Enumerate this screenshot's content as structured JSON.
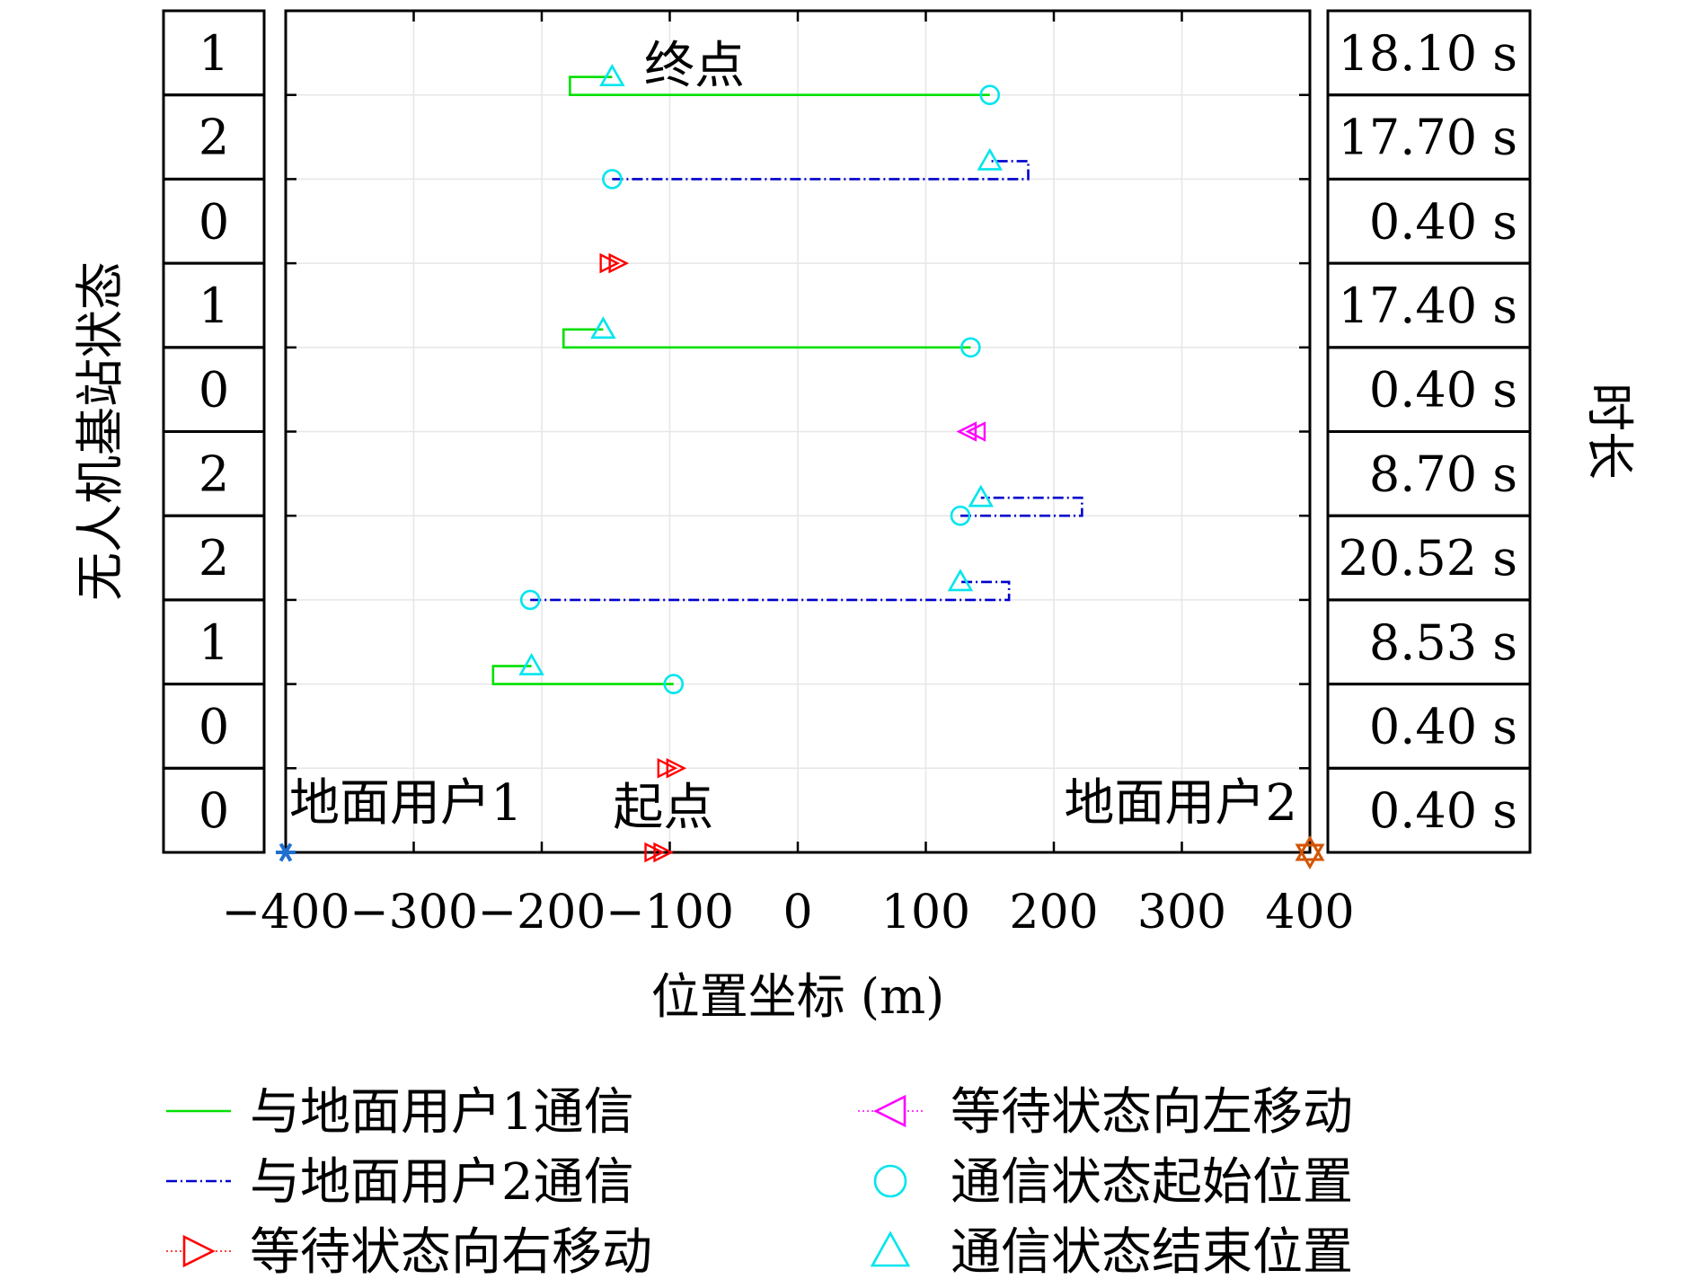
{
  "chart_data": {
    "type": "line",
    "xlabel": "位置坐标 (m)",
    "ylabel": "无人机基站状态",
    "right_label": "时长",
    "xlim": [
      -400,
      400
    ],
    "xticks": [
      -400,
      -300,
      -200,
      -100,
      0,
      100,
      200,
      300,
      400
    ],
    "xtick_labels": [
      "−400",
      "−300",
      "−200",
      "−100",
      "0",
      "100",
      "200",
      "300",
      "400"
    ],
    "grid": true,
    "legend_position": "bottom",
    "rows": [
      {
        "state": "1",
        "duration": "18.10 s"
      },
      {
        "state": "2",
        "duration": "17.70 s"
      },
      {
        "state": "0",
        "duration": "0.40 s"
      },
      {
        "state": "1",
        "duration": "17.40 s"
      },
      {
        "state": "0",
        "duration": "0.40 s"
      },
      {
        "state": "2",
        "duration": "8.70 s"
      },
      {
        "state": "2",
        "duration": "20.52 s"
      },
      {
        "state": "1",
        "duration": "8.53 s"
      },
      {
        "state": "0",
        "duration": "0.40 s"
      },
      {
        "state": "0",
        "duration": "0.40 s"
      }
    ],
    "series": [
      {
        "name": "与地面用户1通信",
        "color": "#00e000",
        "style": "solid",
        "segments": [
          {
            "row": 1,
            "start": 150,
            "end": -145,
            "extreme": -178
          },
          {
            "row": 4,
            "start": 135,
            "end": -152,
            "extreme": -183
          },
          {
            "row": 8,
            "start": -97,
            "end": -208,
            "extreme": -238
          }
        ]
      },
      {
        "name": "与地面用户2通信",
        "color": "#0000cc",
        "style": "dashdot",
        "segments": [
          {
            "row": 2,
            "start": -145,
            "end": 150,
            "extreme": 180
          },
          {
            "row": 6,
            "start": 127,
            "end": 143,
            "extreme": 222
          },
          {
            "row": 7,
            "start": -209,
            "end": 127,
            "extreme": 165
          }
        ]
      },
      {
        "name": "等待状态向右移动",
        "color": "#ff0000",
        "marker": "triangle-right-double",
        "points": [
          {
            "row": 3,
            "x": -145
          },
          {
            "row": 9,
            "x": -100
          },
          {
            "row": 10,
            "x": -110
          }
        ]
      },
      {
        "name": "等待状态向左移动",
        "color": "#ff00ff",
        "marker": "triangle-left-double",
        "points": [
          {
            "row": 5,
            "x": 137
          }
        ]
      },
      {
        "name": "通信状态起始位置",
        "color": "#00e5ee",
        "marker": "circle"
      },
      {
        "name": "通信状态结束位置",
        "color": "#00e5ee",
        "marker": "triangle"
      }
    ],
    "annotations": [
      {
        "text": "终点",
        "x": -120,
        "row": 1
      },
      {
        "text": "起点",
        "x": -105,
        "row": 10
      },
      {
        "text": "地面用户1",
        "x": -400,
        "row": 10
      },
      {
        "text": "地面用户2",
        "x": 400,
        "row": 10
      }
    ],
    "user_markers": [
      {
        "name": "地面用户1",
        "x": -400,
        "color": "#1f6fcf",
        "marker": "asterisk"
      },
      {
        "name": "地面用户2",
        "x": 400,
        "color": "#d35400",
        "marker": "hexagram"
      }
    ]
  }
}
